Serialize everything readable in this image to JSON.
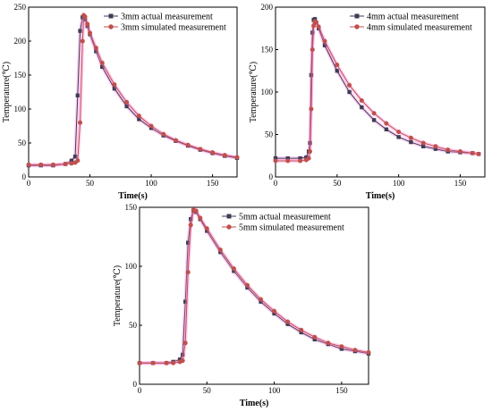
{
  "colors": {
    "actual": "#3d3d55",
    "simulated": "#c0504d",
    "glow": "#ff7fd6"
  },
  "chart_data": [
    {
      "id": "p3mm",
      "type": "scatter",
      "xlabel": "Time(s)",
      "ylabel": "Temperature(℃)",
      "xlim": [
        0,
        170
      ],
      "ylim": [
        0,
        250
      ],
      "xticks": [
        0,
        50,
        100,
        150
      ],
      "yticks": [
        0,
        50,
        100,
        150,
        200,
        250
      ],
      "legend": "top-right",
      "series": [
        {
          "name": "3mm actual measurement",
          "marker": "square",
          "x": [
            0,
            10,
            20,
            30,
            35,
            38,
            40,
            42,
            44,
            46,
            48,
            50,
            55,
            60,
            70,
            80,
            90,
            100,
            110,
            120,
            130,
            140,
            150,
            160,
            170
          ],
          "y": [
            17,
            17,
            17,
            19,
            24,
            30,
            120,
            215,
            235,
            232,
            222,
            210,
            185,
            162,
            130,
            104,
            85,
            72,
            61,
            53,
            46,
            40,
            35,
            31,
            28
          ]
        },
        {
          "name": "3mm simulated measurement",
          "marker": "circle",
          "x": [
            0,
            10,
            20,
            30,
            35,
            38,
            40,
            42,
            44,
            45,
            46,
            48,
            50,
            55,
            60,
            70,
            80,
            90,
            100,
            110,
            120,
            130,
            140,
            150,
            160,
            170
          ],
          "y": [
            18,
            18,
            18,
            19,
            20,
            21,
            24,
            80,
            200,
            238,
            236,
            225,
            212,
            190,
            168,
            136,
            110,
            90,
            75,
            63,
            54,
            47,
            41,
            36,
            32,
            29
          ]
        }
      ]
    },
    {
      "id": "p4mm",
      "type": "scatter",
      "xlabel": "Time(s)",
      "ylabel": "Temperature(℃)",
      "xlim": [
        0,
        170
      ],
      "ylim": [
        0,
        200
      ],
      "xticks": [
        0,
        50,
        100,
        150
      ],
      "yticks": [
        0,
        50,
        100,
        150,
        200
      ],
      "legend": "top-right",
      "series": [
        {
          "name": "4mm actual measurement",
          "marker": "square",
          "x": [
            0,
            10,
            20,
            25,
            27,
            28,
            29,
            30,
            31,
            32,
            33,
            35,
            40,
            50,
            60,
            70,
            80,
            90,
            100,
            110,
            120,
            130,
            140,
            150,
            160,
            165
          ],
          "y": [
            22,
            22,
            22,
            23,
            30,
            40,
            120,
            170,
            185,
            186,
            182,
            175,
            155,
            125,
            100,
            82,
            67,
            56,
            47,
            41,
            36,
            33,
            30,
            29,
            28,
            27
          ]
        },
        {
          "name": "4mm simulated measurement",
          "marker": "circle",
          "x": [
            0,
            10,
            20,
            25,
            27,
            28,
            29,
            30,
            31,
            32,
            33,
            35,
            40,
            50,
            60,
            70,
            80,
            90,
            100,
            110,
            120,
            130,
            140,
            150,
            160,
            165
          ],
          "y": [
            19,
            19,
            19,
            20,
            22,
            30,
            80,
            150,
            178,
            183,
            182,
            177,
            160,
            132,
            108,
            90,
            75,
            63,
            53,
            46,
            40,
            36,
            32,
            30,
            28,
            27
          ]
        }
      ]
    },
    {
      "id": "p5mm",
      "type": "scatter",
      "xlabel": "Time(s)",
      "ylabel": "Temperature(℃)",
      "xlim": [
        0,
        170
      ],
      "ylim": [
        0,
        150
      ],
      "xticks": [
        0,
        50,
        100,
        150
      ],
      "yticks": [
        0,
        50,
        100,
        150
      ],
      "legend": "top-right",
      "series": [
        {
          "name": "5mm actual measurement",
          "marker": "square",
          "x": [
            0,
            10,
            20,
            25,
            30,
            32,
            34,
            36,
            38,
            40,
            42,
            45,
            50,
            60,
            70,
            80,
            90,
            100,
            110,
            120,
            130,
            140,
            150,
            160,
            170
          ],
          "y": [
            18,
            18,
            18,
            19,
            21,
            25,
            70,
            120,
            140,
            147,
            146,
            140,
            130,
            112,
            96,
            82,
            70,
            60,
            51,
            44,
            38,
            34,
            30,
            28,
            26
          ]
        },
        {
          "name": "5mm simulated measurement",
          "marker": "circle",
          "x": [
            0,
            10,
            20,
            25,
            30,
            32,
            34,
            36,
            38,
            40,
            42,
            45,
            50,
            60,
            70,
            80,
            90,
            100,
            110,
            120,
            130,
            140,
            150,
            160,
            170
          ],
          "y": [
            18,
            18,
            18,
            18,
            19,
            20,
            35,
            95,
            135,
            148,
            147,
            141,
            132,
            114,
            98,
            84,
            72,
            62,
            53,
            46,
            40,
            35,
            32,
            29,
            27
          ]
        }
      ]
    }
  ]
}
